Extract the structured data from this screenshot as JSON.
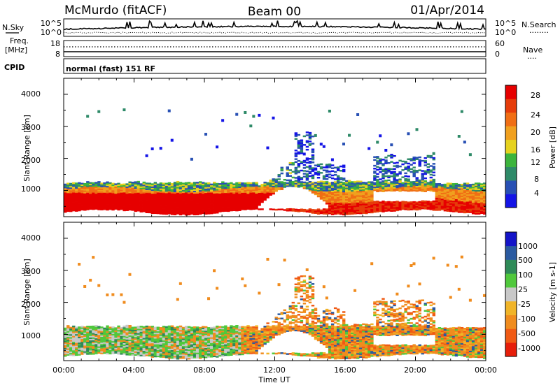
{
  "header": {
    "station": "McMurdo (fitACF)",
    "beam": "Beam 00",
    "date": "01/Apr/2014"
  },
  "top_strip": {
    "left_label": "N.Sky",
    "left_ticks": [
      "10^5",
      "10^0"
    ],
    "right_ticks": [
      "10^5",
      "10^0"
    ],
    "right_label": "N.Search",
    "right_legend": "........"
  },
  "freq_strip": {
    "left_label_1": "Freq.",
    "left_label_2": "[MHz]",
    "left_ticks": [
      "18",
      "8"
    ],
    "right_ticks": [
      "60",
      "0"
    ],
    "right_label": "Nave",
    "right_legend": "...."
  },
  "cpid": {
    "label": "CPID",
    "mode": "normal (fast) 151 RF"
  },
  "axes": {
    "ylabel": "Slant Range [km]",
    "xlabel": "Time UT",
    "yticks": [
      "4000",
      "3000",
      "2000",
      "1000"
    ],
    "xticks": [
      "00:00",
      "04:00",
      "08:00",
      "12:00",
      "16:00",
      "20:00",
      "00:00"
    ]
  },
  "chart_data": [
    {
      "type": "heatmap",
      "panel": "power",
      "colorbar_label": "Power [dB]",
      "colorbar_ticks": [
        "28",
        "24",
        "20",
        "16",
        "12",
        "8",
        "4"
      ],
      "colors": [
        "#1414e6",
        "#2850b4",
        "#2e8a68",
        "#3cb43c",
        "#e6d21e",
        "#f0a01e",
        "#f06e14",
        "#e63c0a",
        "#e60000"
      ],
      "x_range_hours": [
        0,
        24
      ],
      "y_range_km": [
        180,
        4500
      ]
    },
    {
      "type": "heatmap",
      "panel": "velocity",
      "colorbar_label": "Velocity [m s-1]",
      "colorbar_ticks": [
        "1000",
        "500",
        "100",
        "25",
        "-25",
        "-100",
        "-500",
        "-1000"
      ],
      "colors": [
        "#1414c8",
        "#2a5aa0",
        "#2e8a58",
        "#50c83c",
        "#c8c8c8",
        "#f0b428",
        "#f08c1e",
        "#f05a14",
        "#e61e0a"
      ],
      "x_range_hours": [
        0,
        24
      ],
      "y_range_km": [
        180,
        4500
      ]
    }
  ]
}
